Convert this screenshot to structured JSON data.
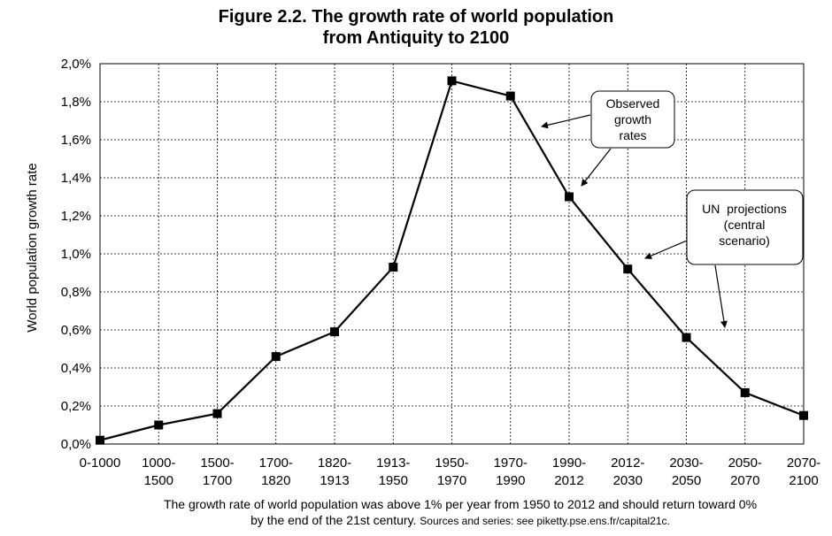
{
  "title_line1": "Figure 2.2. The growth rate of world population",
  "title_line2": "from Antiquity to 2100",
  "caption_line1": "The growth rate of world population was above 1% per year from 1950 to 2012 and should return toward 0%",
  "caption_line2_main": "by the end of the 21st century.",
  "caption_line2_source": "Sources and series: see piketty.pse.ens.fr/capital21c.",
  "chart_data": {
    "type": "line",
    "title": "Figure 2.2. The growth rate of world population from Antiquity to 2100",
    "ylabel": "World population growth rate",
    "xlabel": "",
    "ylim": [
      0,
      2.0
    ],
    "y_ticks": [
      "0,0%",
      "0,2%",
      "0,4%",
      "0,6%",
      "0,8%",
      "1,0%",
      "1,2%",
      "1,4%",
      "1,6%",
      "1,8%",
      "2,0%"
    ],
    "categories": [
      [
        "0-1000"
      ],
      [
        "1000-",
        "1500"
      ],
      [
        "1500-",
        "1700"
      ],
      [
        "1700-",
        "1820"
      ],
      [
        "1820-",
        "1913"
      ],
      [
        "1913-",
        "1950"
      ],
      [
        "1950-",
        "1970"
      ],
      [
        "1970-",
        "1990"
      ],
      [
        "1990-",
        "2012"
      ],
      [
        "2012-",
        "2030"
      ],
      [
        "2030-",
        "2050"
      ],
      [
        "2050-",
        "2070"
      ],
      [
        "2070-",
        "2100"
      ]
    ],
    "values": [
      0.02,
      0.1,
      0.16,
      0.46,
      0.59,
      0.93,
      1.91,
      1.83,
      1.3,
      0.92,
      0.56,
      0.27,
      0.15
    ],
    "grid": true,
    "marker": "square",
    "color": "#000000",
    "annotations": [
      {
        "lines": [
          "Observed",
          "growth",
          "rates"
        ]
      },
      {
        "lines": [
          "UN  projections",
          "(central",
          "scenario)"
        ]
      }
    ]
  }
}
